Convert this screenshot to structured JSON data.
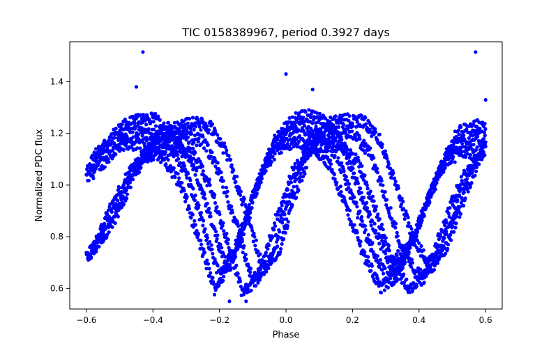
{
  "chart_data": {
    "type": "scatter",
    "title": "TIC 0158389967, period 0.3927 days",
    "xlabel": "Phase",
    "ylabel": "Normalized PDC flux",
    "xlim": [
      -0.65,
      0.65
    ],
    "ylim": [
      0.52,
      1.555
    ],
    "x_ticks": [
      -0.6,
      -0.4,
      -0.2,
      0.0,
      0.2,
      0.4,
      0.6
    ],
    "x_tick_labels": [
      "−0.6",
      "−0.4",
      "−0.2",
      "0.0",
      "0.2",
      "0.4",
      "0.6"
    ],
    "y_ticks": [
      0.6,
      0.8,
      1.0,
      1.2,
      1.4
    ],
    "y_tick_labels": [
      "0.6",
      "0.8",
      "1.0",
      "1.2",
      "1.4"
    ],
    "grid": false,
    "marker_color": "#0000ff",
    "series": [
      {
        "description": "folded light curve envelope (main band)",
        "x": [
          -0.6,
          -0.55,
          -0.5,
          -0.45,
          -0.4,
          -0.35,
          -0.3,
          -0.25,
          -0.2,
          -0.15,
          -0.1,
          -0.05,
          0.0,
          0.05,
          0.1,
          0.15,
          0.2,
          0.25,
          0.3,
          0.35,
          0.4,
          0.45,
          0.5,
          0.55,
          0.6
        ],
        "y": [
          1.05,
          1.12,
          1.18,
          1.21,
          1.2,
          1.15,
          1.05,
          0.85,
          0.65,
          0.75,
          0.95,
          1.12,
          1.2,
          1.22,
          1.2,
          1.12,
          0.95,
          0.78,
          0.65,
          0.7,
          0.85,
          1.02,
          1.15,
          1.18,
          1.17
        ]
      },
      {
        "description": "phase-shifted tracks",
        "x": [
          -0.6,
          -0.55,
          -0.5,
          -0.45,
          -0.4,
          -0.35,
          -0.3,
          -0.25,
          -0.2,
          -0.15,
          -0.1,
          -0.05,
          0.0,
          0.05,
          0.1,
          0.15,
          0.2,
          0.25,
          0.3,
          0.35,
          0.4,
          0.45,
          0.5,
          0.55,
          0.6
        ],
        "y": [
          0.72,
          0.8,
          0.95,
          1.08,
          1.15,
          1.18,
          1.19,
          1.17,
          1.05,
          0.85,
          0.63,
          0.7,
          0.92,
          1.1,
          1.19,
          1.2,
          1.2,
          1.13,
          0.95,
          0.75,
          0.65,
          0.7,
          0.88,
          1.05,
          1.15
        ]
      },
      {
        "description": "outliers",
        "x": [
          -0.43,
          0.57,
          0.0,
          -0.45,
          -0.17,
          -0.12,
          0.08,
          0.6
        ],
        "y": [
          1.515,
          1.515,
          1.43,
          1.38,
          0.55,
          0.55,
          1.37,
          1.33
        ]
      }
    ]
  }
}
